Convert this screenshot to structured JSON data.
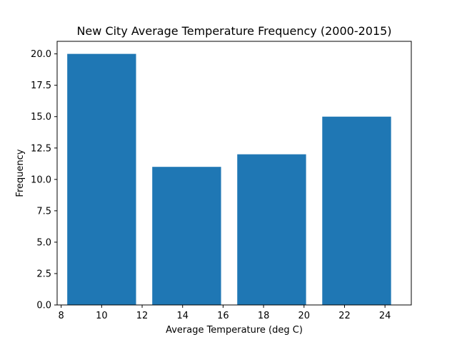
{
  "chart_data": {
    "type": "bar",
    "title": "New City Average Temperature Frequency (2000-2015)",
    "xlabel": "Average Temperature (deg C)",
    "ylabel": "Frequency",
    "bars": [
      {
        "center": 10,
        "width": 3.4,
        "value": 20
      },
      {
        "center": 14.2,
        "width": 3.4,
        "value": 11
      },
      {
        "center": 18.4,
        "width": 3.4,
        "value": 12
      },
      {
        "center": 22.6,
        "width": 3.4,
        "value": 15
      }
    ],
    "xlim": [
      7.8,
      25.3
    ],
    "ylim": [
      0,
      21
    ],
    "xticks": [
      8,
      10,
      12,
      14,
      16,
      18,
      20,
      22,
      24
    ],
    "yticks": [
      0.0,
      2.5,
      5.0,
      7.5,
      10.0,
      12.5,
      15.0,
      17.5,
      20.0
    ],
    "ytick_labels": [
      "0.0",
      "2.5",
      "5.0",
      "7.5",
      "10.0",
      "12.5",
      "15.0",
      "17.5",
      "20.0"
    ],
    "bar_color": "#1f77b4",
    "grid": false,
    "legend": "none"
  }
}
